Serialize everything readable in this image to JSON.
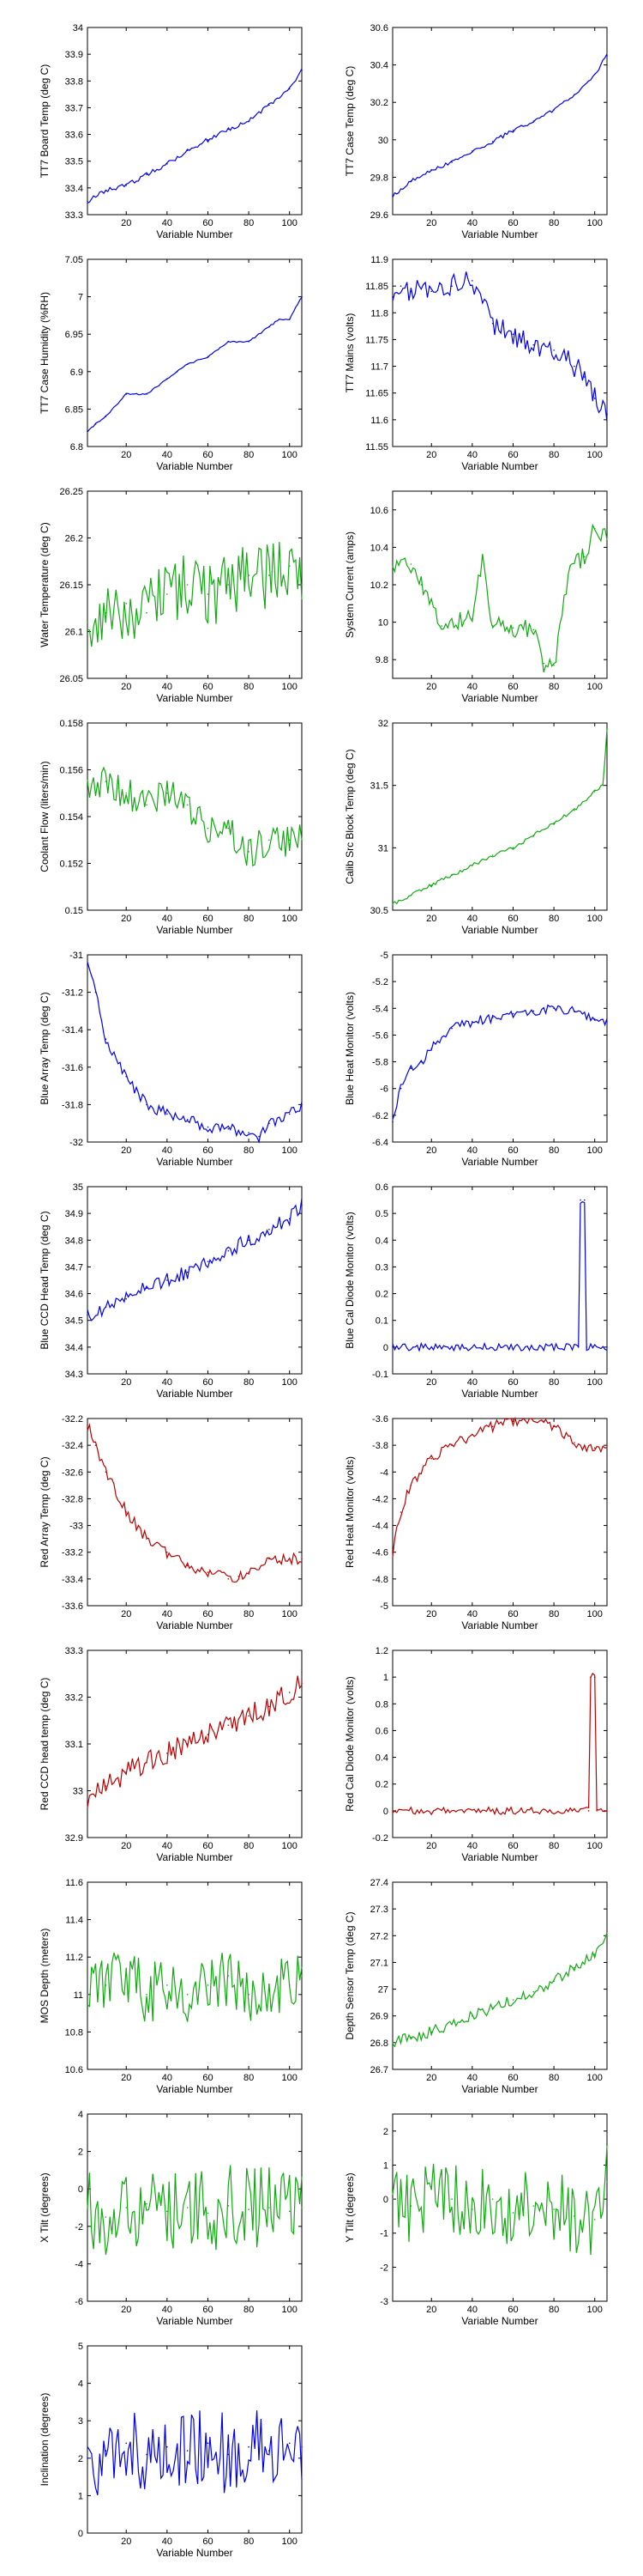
{
  "colors": {
    "blue": "#0000ee",
    "green": "#11aa11",
    "red": "#bb0000",
    "axis": "#000000"
  },
  "chart_data": [
    {
      "type": "line",
      "xlabel": "Variable Number",
      "ylabel": "TT7 Board Temp (deg C)",
      "color": "blue",
      "xlim": [
        1,
        106
      ],
      "ylim": [
        33.3,
        34
      ],
      "yticks": [
        "33.3",
        "33.4",
        "33.5",
        "33.6",
        "33.7",
        "33.8",
        "33.9",
        "34"
      ],
      "x": [
        1,
        10,
        20,
        30,
        40,
        50,
        60,
        70,
        80,
        90,
        100,
        106
      ],
      "y": [
        33.35,
        33.39,
        33.41,
        33.45,
        33.49,
        33.54,
        33.58,
        33.62,
        33.65,
        33.71,
        33.77,
        33.84
      ]
    },
    {
      "type": "line",
      "xlabel": "Variable Number",
      "ylabel": "TT7 Case Temp (deg C)",
      "color": "blue",
      "xlim": [
        1,
        106
      ],
      "ylim": [
        29.6,
        30.6
      ],
      "yticks": [
        "29.6",
        "29.8",
        "30",
        "30.2",
        "30.4",
        "30.6"
      ],
      "x": [
        1,
        10,
        20,
        30,
        40,
        50,
        60,
        70,
        80,
        90,
        100,
        106
      ],
      "y": [
        29.7,
        29.78,
        29.84,
        29.88,
        29.94,
        29.99,
        30.05,
        30.1,
        30.16,
        30.24,
        30.35,
        30.45
      ]
    },
    {
      "type": "line",
      "xlabel": "Variable Number",
      "ylabel": "TT7 Case Humidity (%RH)",
      "color": "blue",
      "xlim": [
        1,
        106
      ],
      "ylim": [
        6.8,
        7.05
      ],
      "yticks": [
        "6.8",
        "6.85",
        "6.9",
        "6.95",
        "7",
        "7.05"
      ],
      "x": [
        1,
        5,
        10,
        20,
        30,
        40,
        45,
        50,
        60,
        70,
        80,
        90,
        95,
        100,
        106
      ],
      "y": [
        6.82,
        6.83,
        6.84,
        6.87,
        6.87,
        6.89,
        6.9,
        6.91,
        6.92,
        6.94,
        6.94,
        6.96,
        6.97,
        6.97,
        7.0
      ]
    },
    {
      "type": "line",
      "xlabel": "Variable Number",
      "ylabel": "TT7 Mains  (volts)",
      "color": "blue",
      "xlim": [
        1,
        106
      ],
      "ylim": [
        11.55,
        11.9
      ],
      "yticks": [
        "11.55",
        "11.6",
        "11.65",
        "11.7",
        "11.75",
        "11.8",
        "11.85",
        "11.9"
      ],
      "x": [
        1,
        5,
        10,
        20,
        30,
        40,
        45,
        50,
        60,
        70,
        80,
        90,
        95,
        100,
        106
      ],
      "y": [
        11.83,
        11.85,
        11.84,
        11.84,
        11.85,
        11.86,
        11.82,
        11.78,
        11.76,
        11.74,
        11.73,
        11.7,
        11.68,
        11.64,
        11.61
      ]
    },
    {
      "type": "line",
      "xlabel": "Variable Number",
      "ylabel": "Water Temperature (deg C)",
      "color": "green",
      "xlim": [
        1,
        106
      ],
      "ylim": [
        26.05,
        26.25
      ],
      "yticks": [
        "26.05",
        "26.1",
        "26.15",
        "26.2",
        "26.25"
      ],
      "x": [
        1,
        10,
        20,
        30,
        40,
        50,
        60,
        70,
        80,
        90,
        100,
        106
      ],
      "y": [
        26.11,
        26.12,
        26.13,
        26.12,
        26.14,
        26.15,
        26.14,
        26.15,
        26.16,
        26.16,
        26.17,
        26.15
      ]
    },
    {
      "type": "line",
      "xlabel": "Variable Number",
      "ylabel": "System Current (amps)",
      "color": "green",
      "xlim": [
        1,
        106
      ],
      "ylim": [
        9.7,
        10.7
      ],
      "yticks": [
        "9.8",
        "10",
        "10.2",
        "10.4",
        "10.6"
      ],
      "x": [
        1,
        10,
        15,
        25,
        40,
        45,
        50,
        60,
        70,
        75,
        80,
        88,
        95,
        100,
        106
      ],
      "y": [
        10.3,
        10.31,
        10.2,
        9.98,
        10.02,
        10.35,
        9.98,
        9.97,
        9.96,
        9.78,
        9.77,
        10.3,
        10.35,
        10.5,
        10.45
      ]
    },
    {
      "type": "line",
      "xlabel": "Variable Number",
      "ylabel": "Coolant Flow (liters/min)",
      "color": "green",
      "xlim": [
        1,
        106
      ],
      "ylim": [
        0.15,
        0.158
      ],
      "yticks": [
        "0.15",
        "0.152",
        "0.154",
        "0.156",
        "0.158"
      ],
      "x": [
        1,
        10,
        20,
        30,
        40,
        50,
        60,
        70,
        80,
        90,
        100,
        106
      ],
      "y": [
        0.1555,
        0.1555,
        0.155,
        0.1545,
        0.155,
        0.1545,
        0.1535,
        0.1535,
        0.1525,
        0.153,
        0.153,
        0.153
      ]
    },
    {
      "type": "line",
      "xlabel": "Variable Number",
      "ylabel": "Calib Src Block Temp (deg C)",
      "color": "green",
      "xlim": [
        1,
        106
      ],
      "ylim": [
        30.5,
        32
      ],
      "yticks": [
        "30.5",
        "31",
        "31.5",
        "32"
      ],
      "x": [
        1,
        10,
        20,
        30,
        40,
        50,
        60,
        70,
        80,
        90,
        100,
        104,
        106
      ],
      "y": [
        30.55,
        30.62,
        30.7,
        30.78,
        30.86,
        30.94,
        31.0,
        31.1,
        31.2,
        31.3,
        31.45,
        31.5,
        31.95
      ]
    },
    {
      "type": "line",
      "xlabel": "Variable Number",
      "ylabel": "Blue Array Temp (deg C)",
      "color": "blue",
      "xlim": [
        1,
        106
      ],
      "ylim": [
        -32,
        -31
      ],
      "yticks": [
        "-32",
        "-31.8",
        "-31.6",
        "-31.4",
        "-31.2",
        "-31"
      ],
      "x": [
        1,
        5,
        10,
        20,
        30,
        40,
        50,
        60,
        70,
        80,
        85,
        90,
        100,
        106
      ],
      "y": [
        -31.05,
        -31.2,
        -31.45,
        -31.65,
        -31.8,
        -31.85,
        -31.88,
        -31.92,
        -31.93,
        -31.95,
        -31.97,
        -31.9,
        -31.85,
        -31.8
      ]
    },
    {
      "type": "line",
      "xlabel": "Variable Number",
      "ylabel": "Blue Heat Monitor (volts)",
      "color": "blue",
      "xlim": [
        1,
        106
      ],
      "ylim": [
        -6.4,
        -5
      ],
      "yticks": [
        "-6.4",
        "-6.2",
        "-6",
        "-5.8",
        "-5.6",
        "-5.4",
        "-5.2",
        "-5"
      ],
      "x": [
        1,
        5,
        10,
        15,
        20,
        30,
        40,
        50,
        60,
        70,
        80,
        90,
        100,
        106
      ],
      "y": [
        -6.25,
        -6.0,
        -5.85,
        -5.8,
        -5.7,
        -5.55,
        -5.5,
        -5.47,
        -5.44,
        -5.42,
        -5.4,
        -5.42,
        -5.48,
        -5.5
      ]
    },
    {
      "type": "line",
      "xlabel": "Variable Number",
      "ylabel": "Blue CCD Head Temp (deg C)",
      "color": "blue",
      "xlim": [
        1,
        106
      ],
      "ylim": [
        34.3,
        35
      ],
      "yticks": [
        "34.3",
        "34.4",
        "34.5",
        "34.6",
        "34.7",
        "34.8",
        "34.9",
        "35"
      ],
      "x": [
        1,
        10,
        20,
        30,
        40,
        50,
        60,
        70,
        80,
        90,
        100,
        106
      ],
      "y": [
        34.52,
        34.55,
        34.58,
        34.62,
        34.65,
        34.68,
        34.72,
        34.76,
        34.8,
        34.84,
        34.88,
        34.93
      ]
    },
    {
      "type": "line",
      "xlabel": "Variable Number",
      "ylabel": "Blue Cal Diode Monitor (volts)",
      "color": "blue",
      "xlim": [
        1,
        106
      ],
      "ylim": [
        -0.1,
        0.6
      ],
      "yticks": [
        "-0.1",
        "0",
        "0.1",
        "0.2",
        "0.3",
        "0.4",
        "0.5",
        "0.6"
      ],
      "x": [
        1,
        92,
        93,
        95,
        96,
        106
      ],
      "y": [
        0,
        0,
        0.55,
        0.55,
        0,
        0
      ]
    },
    {
      "type": "line",
      "xlabel": "Variable Number",
      "ylabel": "Red Array Temp (deg C)",
      "color": "red",
      "xlim": [
        1,
        106
      ],
      "ylim": [
        -33.6,
        -32.2
      ],
      "yticks": [
        "-33.6",
        "-33.4",
        "-33.2",
        "-33",
        "-32.8",
        "-32.6",
        "-32.4",
        "-32.2"
      ],
      "x": [
        1,
        5,
        10,
        20,
        30,
        40,
        50,
        60,
        70,
        75,
        80,
        90,
        100,
        106
      ],
      "y": [
        -32.25,
        -32.4,
        -32.6,
        -32.9,
        -33.1,
        -33.2,
        -33.3,
        -33.35,
        -33.4,
        -33.38,
        -33.35,
        -33.25,
        -33.25,
        -33.25
      ]
    },
    {
      "type": "line",
      "xlabel": "Variable Number",
      "ylabel": "Red Heat Monitor (volts)",
      "color": "red",
      "xlim": [
        1,
        106
      ],
      "ylim": [
        -5,
        -3.6
      ],
      "yticks": [
        "-5",
        "-4.8",
        "-4.6",
        "-4.4",
        "-4.2",
        "-4",
        "-3.8",
        "-3.6"
      ],
      "x": [
        1,
        5,
        10,
        20,
        30,
        40,
        50,
        60,
        70,
        75,
        80,
        90,
        100,
        106
      ],
      "y": [
        -4.6,
        -4.3,
        -4.1,
        -3.9,
        -3.8,
        -3.72,
        -3.66,
        -3.62,
        -3.6,
        -3.62,
        -3.66,
        -3.78,
        -3.82,
        -3.8
      ]
    },
    {
      "type": "line",
      "xlabel": "Variable Number",
      "ylabel": "Red CCD head temp (deg C)",
      "color": "red",
      "xlim": [
        1,
        106
      ],
      "ylim": [
        32.9,
        33.3
      ],
      "yticks": [
        "32.9",
        "33",
        "33.1",
        "33.2",
        "33.3"
      ],
      "x": [
        1,
        10,
        20,
        30,
        40,
        50,
        60,
        70,
        80,
        90,
        100,
        106
      ],
      "y": [
        32.98,
        33.01,
        33.04,
        33.06,
        33.08,
        33.1,
        33.12,
        33.14,
        33.16,
        33.18,
        33.21,
        33.23
      ]
    },
    {
      "type": "line",
      "xlabel": "Variable Number",
      "ylabel": "Red Cal Diode Monitor (volts)",
      "color": "red",
      "xlim": [
        1,
        106
      ],
      "ylim": [
        -0.2,
        1.2
      ],
      "yticks": [
        "-0.2",
        "0",
        "0.2",
        "0.4",
        "0.6",
        "0.8",
        "1",
        "1.2"
      ],
      "x": [
        1,
        97,
        98,
        100,
        101,
        106
      ],
      "y": [
        0,
        0,
        1.0,
        1.0,
        0,
        0
      ]
    },
    {
      "type": "line",
      "xlabel": "Variable Number",
      "ylabel": "MOS Depth  (meters)",
      "color": "green",
      "xlim": [
        1,
        106
      ],
      "ylim": [
        10.6,
        11.6
      ],
      "yticks": [
        "10.6",
        "10.8",
        "11",
        "11.2",
        "11.4",
        "11.6"
      ],
      "x": [
        1,
        10,
        20,
        30,
        40,
        50,
        60,
        70,
        80,
        90,
        100,
        106
      ],
      "y": [
        11.0,
        11.05,
        11.1,
        11.0,
        11.05,
        11.0,
        11.05,
        11.1,
        11.0,
        11.05,
        11.05,
        11.1
      ]
    },
    {
      "type": "line",
      "xlabel": "Variable Number",
      "ylabel": "Depth Sensor Temp (deg C)",
      "color": "green",
      "xlim": [
        1,
        106
      ],
      "ylim": [
        26.7,
        27.4
      ],
      "yticks": [
        "26.7",
        "26.8",
        "26.9",
        "27",
        "27.1",
        "27.2",
        "27.3",
        "27.4"
      ],
      "x": [
        1,
        10,
        20,
        30,
        40,
        50,
        60,
        70,
        80,
        90,
        100,
        106
      ],
      "y": [
        26.8,
        26.82,
        26.84,
        26.87,
        26.9,
        26.93,
        26.96,
        26.99,
        27.03,
        27.08,
        27.13,
        27.2
      ]
    },
    {
      "type": "line",
      "xlabel": "Variable Number",
      "ylabel": "X Tilt  (degrees)",
      "color": "green",
      "xlim": [
        1,
        106
      ],
      "ylim": [
        -6,
        4
      ],
      "yticks": [
        "-6",
        "-4",
        "-2",
        "0",
        "2",
        "4"
      ],
      "x": [
        1,
        10,
        20,
        30,
        40,
        50,
        60,
        70,
        80,
        90,
        100,
        106
      ],
      "y": [
        -1.0,
        -1.5,
        -1.0,
        -0.8,
        -1.2,
        -1.0,
        -1.3,
        -0.9,
        -1.1,
        -1.0,
        -1.2,
        -1.0
      ]
    },
    {
      "type": "line",
      "xlabel": "Variable Number",
      "ylabel": "Y Tilt  (degrees)",
      "color": "green",
      "xlim": [
        1,
        106
      ],
      "ylim": [
        -3,
        2.5
      ],
      "yticks": [
        "-3",
        "-2",
        "-1",
        "0",
        "1",
        "2"
      ],
      "x": [
        1,
        10,
        20,
        30,
        40,
        50,
        60,
        70,
        80,
        90,
        100,
        106
      ],
      "y": [
        0.0,
        -0.2,
        0.3,
        0.0,
        -0.3,
        0.0,
        -0.4,
        -0.2,
        -0.3,
        -0.5,
        -0.6,
        0.5
      ]
    },
    {
      "type": "line",
      "xlabel": "Variable Number",
      "ylabel": "Inclination  (degrees)",
      "color": "blue",
      "xlim": [
        1,
        106
      ],
      "ylim": [
        0,
        5
      ],
      "yticks": [
        "0",
        "1",
        "2",
        "3",
        "4",
        "5"
      ],
      "x": [
        1,
        10,
        20,
        30,
        40,
        50,
        60,
        70,
        80,
        90,
        100,
        106
      ],
      "y": [
        2.0,
        2.2,
        2.4,
        2.1,
        2.3,
        2.2,
        2.4,
        2.1,
        2.3,
        2.2,
        2.4,
        2.3
      ]
    }
  ],
  "xticks": [
    "20",
    "40",
    "60",
    "80",
    "100"
  ]
}
